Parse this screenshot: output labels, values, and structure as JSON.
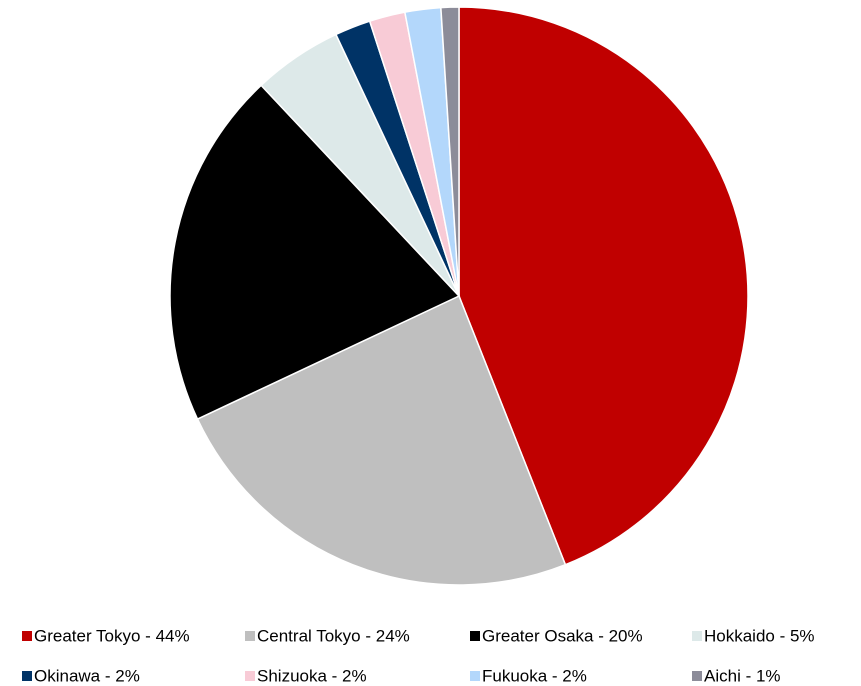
{
  "chart_data": {
    "type": "pie",
    "categories": [
      "Greater Tokyo - 44%",
      "Central Tokyo - 24%",
      "Greater Osaka - 20%",
      "Hokkaido - 5%",
      "Okinawa - 2%",
      "Shizuoka - 2%",
      "Fukuoka - 2%",
      "Aichi - 1%"
    ],
    "values": [
      44,
      24,
      20,
      5,
      2,
      2,
      2,
      1
    ],
    "colors": [
      "#c00000",
      "#bfbfbf",
      "#000000",
      "#dde9e9",
      "#003366",
      "#f8cbd6",
      "#b3d7fb",
      "#8c8c99"
    ],
    "legend": "bottom"
  }
}
